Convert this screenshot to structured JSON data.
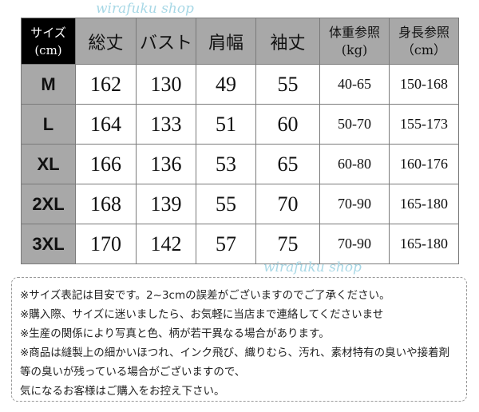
{
  "table": {
    "headers": [
      {
        "line1": "サイズ",
        "line2": "(cm)"
      },
      {
        "line1": "総丈"
      },
      {
        "line1": "バスト"
      },
      {
        "line1": "肩幅"
      },
      {
        "line1": "袖丈"
      },
      {
        "line1": "体重参照",
        "line2": "(kg)"
      },
      {
        "line1": "身長参照",
        "line2": "（cm）"
      }
    ],
    "rows": [
      {
        "size": "M",
        "length": "162",
        "bust": "130",
        "shoulder": "49",
        "sleeve": "55",
        "weight": "40-65",
        "height": "150-168"
      },
      {
        "size": "L",
        "length": "164",
        "bust": "133",
        "shoulder": "51",
        "sleeve": "60",
        "weight": "50-70",
        "height": "155-173"
      },
      {
        "size": "XL",
        "length": "166",
        "bust": "136",
        "shoulder": "53",
        "sleeve": "65",
        "weight": "60-80",
        "height": "160-176"
      },
      {
        "size": "2XL",
        "length": "168",
        "bust": "139",
        "shoulder": "55",
        "sleeve": "70",
        "weight": "70-90",
        "height": "165-180"
      },
      {
        "size": "3XL",
        "length": "170",
        "bust": "142",
        "shoulder": "57",
        "sleeve": "75",
        "weight": "70-90",
        "height": "165-180"
      }
    ]
  },
  "notes": [
    "※サイズ表記は目安です。2~3cmの誤差がございますのでご了承ください。",
    "※購入際、サイズに迷いましたら、お気軽に当店まで連絡してくださいませ",
    "※生産の関係により写真と色、柄が若干異なる場合があります。",
    "※商品は縫製上の細かいほつれ、インク飛び、織りむら、汚れ、素材特有の臭いや接着剤",
    "等の臭いが残っている場合がございますので、",
    "気になるお客様はご購入をお控え下さい。"
  ],
  "watermark": "wirafuku shop",
  "colors": {
    "header_bg": "#a8a8a8",
    "corner_bg": "#000000",
    "watermark": "#a8d8e6"
  }
}
